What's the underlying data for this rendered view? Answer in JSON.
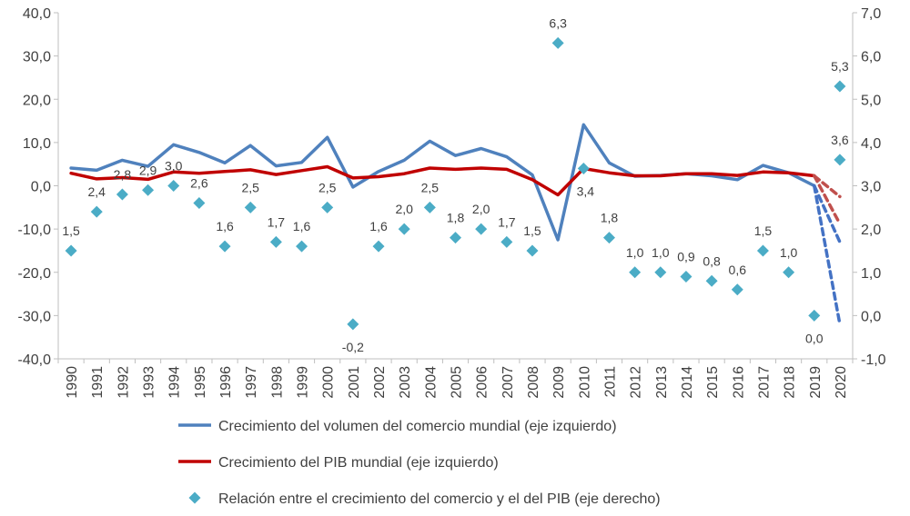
{
  "chart_data": {
    "type": "line",
    "title": "",
    "xlabel": "",
    "ylabel": "",
    "categories": [
      "1990",
      "1991",
      "1992",
      "1993",
      "1994",
      "1995",
      "1996",
      "1997",
      "1998",
      "1999",
      "2000",
      "2001",
      "2002",
      "2003",
      "2004",
      "2005",
      "2006",
      "2007",
      "2008",
      "2009",
      "2010",
      "2011",
      "2012",
      "2013",
      "2014",
      "2015",
      "2016",
      "2017",
      "2018",
      "2019",
      "2020"
    ],
    "left_axis": {
      "min": -40,
      "max": 40,
      "step": 10,
      "tick_labels": [
        "-40,0",
        "-30,0",
        "-20,0",
        "-10,0",
        "0,0",
        "10,0",
        "20,0",
        "30,0",
        "40,0"
      ]
    },
    "right_axis": {
      "min": -1,
      "max": 7,
      "step": 1,
      "tick_labels": [
        "-1,0",
        "0,0",
        "1,0",
        "2,0",
        "3,0",
        "4,0",
        "5,0",
        "6,0",
        "7,0"
      ]
    },
    "grid": false,
    "legend_position": "bottom",
    "series": [
      {
        "name": "Crecimiento del volumen del comercio mundial (eje izquierdo)",
        "axis": "left",
        "color": "#4F81BD",
        "values": [
          4.1,
          3.6,
          5.9,
          4.5,
          9.5,
          7.7,
          5.3,
          9.3,
          4.6,
          5.4,
          11.2,
          -0.3,
          3.3,
          5.9,
          10.3,
          7.0,
          8.6,
          6.7,
          2.5,
          -12.5,
          14.1,
          5.3,
          2.2,
          2.4,
          2.8,
          2.3,
          1.4,
          4.7,
          3.0,
          0.0,
          null
        ],
        "projection": {
          "from": "2019",
          "to": "2020",
          "optimistic": -13,
          "pessimistic": -32
        }
      },
      {
        "name": "Crecimiento del PIB mundial (eje izquierdo)",
        "axis": "left",
        "color": "#C00000",
        "values": [
          2.9,
          1.6,
          1.9,
          1.5,
          3.2,
          2.9,
          3.3,
          3.7,
          2.6,
          3.5,
          4.4,
          1.8,
          2.1,
          2.8,
          4.1,
          3.8,
          4.1,
          3.8,
          1.4,
          -2.1,
          4.0,
          3.0,
          2.3,
          2.3,
          2.8,
          2.8,
          2.4,
          3.2,
          3.0,
          2.3,
          null
        ],
        "projection": {
          "from": "2019",
          "to": "2020",
          "optimistic": -2.5,
          "pessimistic": -8.8
        }
      },
      {
        "name": "Relación entre el crecimiento del comercio y el del PIB (eje derecho)",
        "axis": "right",
        "type": "scatter",
        "color": "#4BACC6",
        "values": [
          1.5,
          2.4,
          2.8,
          2.9,
          3.0,
          2.6,
          1.6,
          2.5,
          1.7,
          1.6,
          2.5,
          -0.2,
          1.6,
          2.0,
          2.5,
          1.8,
          2.0,
          1.7,
          1.5,
          6.3,
          3.4,
          1.8,
          1.0,
          1.0,
          0.9,
          0.8,
          0.6,
          1.5,
          1.0,
          0.0,
          [
            5.3,
            3.6
          ]
        ],
        "labels": [
          "1,5",
          "2,4",
          "2,8",
          "2,9",
          "3,0",
          "2,6",
          "1,6",
          "2,5",
          "1,7",
          "1,6",
          "2,5",
          "-0,2",
          "1,6",
          "2,0",
          "2,5",
          "1,8",
          "2,0",
          "1,7",
          "1,5",
          "6,3",
          "3,4",
          "1,8",
          "1,0",
          "1,0",
          "0,9",
          "0,8",
          "0,6",
          "1,5",
          "1,0",
          "0,0",
          [
            "5,3",
            "3,6"
          ]
        ]
      }
    ]
  }
}
